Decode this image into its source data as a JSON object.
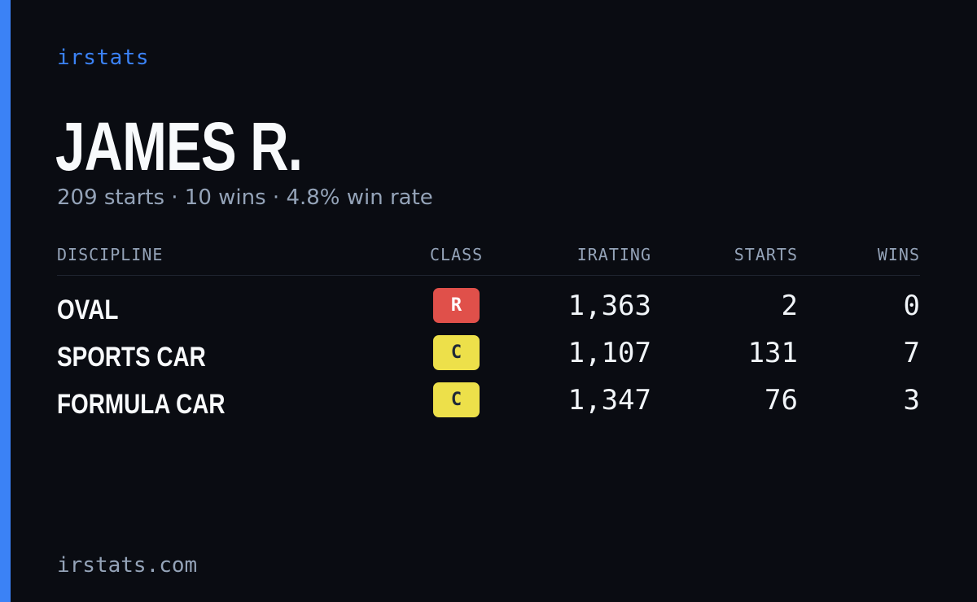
{
  "brand": "irstats",
  "driver": {
    "name": "JAMES R.",
    "summary": "209 starts · 10 wins · 4.8% win rate"
  },
  "table": {
    "headers": {
      "discipline": "DISCIPLINE",
      "class": "CLASS",
      "irating": "IRATING",
      "starts": "STARTS",
      "wins": "WINS"
    },
    "rows": [
      {
        "discipline": "OVAL",
        "class": "R",
        "class_bg": "#e0504a",
        "class_fg": "#ffffff",
        "irating": "1,363",
        "starts": "2",
        "wins": "0"
      },
      {
        "discipline": "SPORTS CAR",
        "class": "C",
        "class_bg": "#ede04a",
        "class_fg": "#1f2937",
        "irating": "1,107",
        "starts": "131",
        "wins": "7"
      },
      {
        "discipline": "FORMULA CAR",
        "class": "C",
        "class_bg": "#ede04a",
        "class_fg": "#1f2937",
        "irating": "1,347",
        "starts": "76",
        "wins": "3"
      }
    ]
  },
  "footer": "irstats.com",
  "colors": {
    "accent": "#3b82f6",
    "background": "#0a0c12",
    "muted_text": "#94a3b8"
  }
}
